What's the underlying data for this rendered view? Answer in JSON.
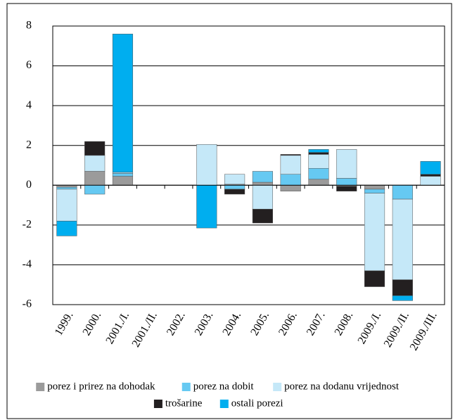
{
  "chart_data": {
    "type": "bar",
    "stacked": true,
    "categories": [
      "1999.",
      "2000.",
      "2001./I.",
      "2001./II.",
      "2002.",
      "2003.",
      "2004.",
      "2005.",
      "2006.",
      "2007.",
      "2008.",
      "2009./I.",
      "2009./II.",
      "2009./III."
    ],
    "series": [
      {
        "name": "porez i prirez na dohodak",
        "color": "#9b9b9b",
        "values": [
          -0.1,
          0.7,
          0.45,
          0,
          0,
          0,
          0.05,
          0.15,
          -0.3,
          0.3,
          -0.05,
          -0.2,
          0,
          0
        ]
      },
      {
        "name": "porez na dobit",
        "color": "#66c9f2",
        "values": [
          -0.1,
          -0.45,
          0.15,
          0,
          0,
          0,
          -0.2,
          0.55,
          0.55,
          0.55,
          0.35,
          -0.2,
          -0.7,
          0
        ]
      },
      {
        "name": "porez na dodanu vrijednost",
        "color": "#c5e8f8",
        "values": [
          -1.6,
          0.8,
          0.05,
          0,
          0,
          2.05,
          0.5,
          -1.2,
          0.95,
          0.7,
          1.45,
          -3.9,
          -4.05,
          0.45
        ]
      },
      {
        "name": "trošarine",
        "color": "#231f20",
        "values": [
          0,
          0.7,
          0,
          0,
          0,
          0,
          -0.25,
          -0.7,
          0.05,
          0.1,
          -0.25,
          -0.8,
          -0.8,
          0.1
        ]
      },
      {
        "name": "ostali porezi",
        "color": "#00aeef",
        "values": [
          -0.75,
          0,
          6.95,
          0,
          0,
          -2.15,
          0,
          0,
          0,
          0.15,
          0,
          0,
          -0.25,
          0.65
        ]
      }
    ],
    "ylim": [
      -6,
      8
    ],
    "yticks": [
      -6,
      -4,
      -2,
      0,
      2,
      4,
      6,
      8
    ],
    "grid": true
  }
}
